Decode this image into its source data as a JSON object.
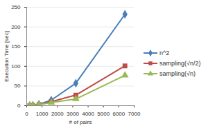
{
  "chart_data": {
    "type": "line",
    "x_label": "# of pairs",
    "y_label": "Execution Time [sec]",
    "x": [
      200,
      400,
      800,
      1600,
      3200,
      6400
    ],
    "series": [
      {
        "name": "n^2",
        "color": "#4a7ebb",
        "marker": "diamond",
        "values": [
          0.5,
          1,
          3.5,
          14,
          57,
          232
        ]
      },
      {
        "name": "sampling(√n/2)",
        "color": "#be4b48",
        "marker": "square",
        "values": [
          0.3,
          0.8,
          3,
          10,
          27,
          101
        ]
      },
      {
        "name": "sampling(√n)",
        "color": "#98b954",
        "marker": "triangle",
        "values": [
          0.2,
          0.6,
          2.5,
          8,
          17,
          77
        ]
      }
    ],
    "xlim": [
      0,
      7000
    ],
    "xticks": [
      0,
      1000,
      2000,
      3000,
      4000,
      5000,
      6000,
      7000
    ],
    "ylim": [
      0,
      250
    ],
    "yticks": [
      0,
      50,
      100,
      150,
      200,
      250
    ],
    "grid": true,
    "legend": "right"
  }
}
